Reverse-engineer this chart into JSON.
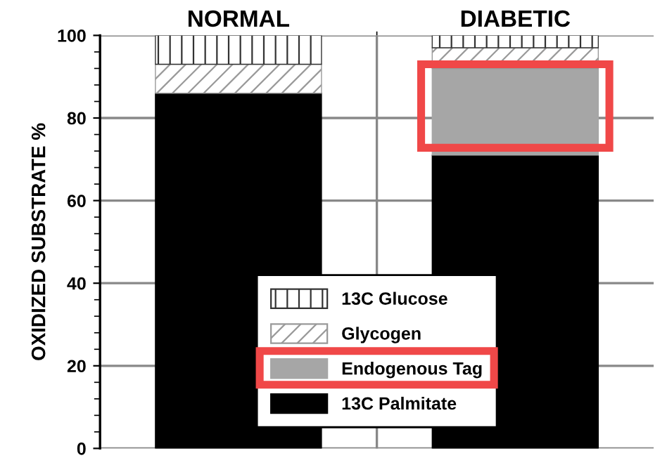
{
  "chart_data": {
    "type": "bar",
    "stacked": true,
    "ylabel": "OXIDIZED SUBSTRATE %",
    "categories": [
      "NORMAL",
      "DIABETIC"
    ],
    "series": [
      {
        "name": "13C Palmitate",
        "color": "#000000",
        "values": [
          86,
          71
        ]
      },
      {
        "name": "Endogenous Tag",
        "color": "#a6a6a6",
        "values": [
          null,
          21
        ]
      },
      {
        "name": "Glycogen",
        "color": "#999999",
        "values": [
          7,
          5
        ]
      },
      {
        "name": "13C Glucose",
        "color": "#333333",
        "values": [
          7,
          3
        ]
      }
    ],
    "ylim": [
      0,
      100
    ],
    "yticks": [
      0,
      20,
      40,
      60,
      80,
      100
    ],
    "grid": true,
    "legend": "bottom"
  }
}
